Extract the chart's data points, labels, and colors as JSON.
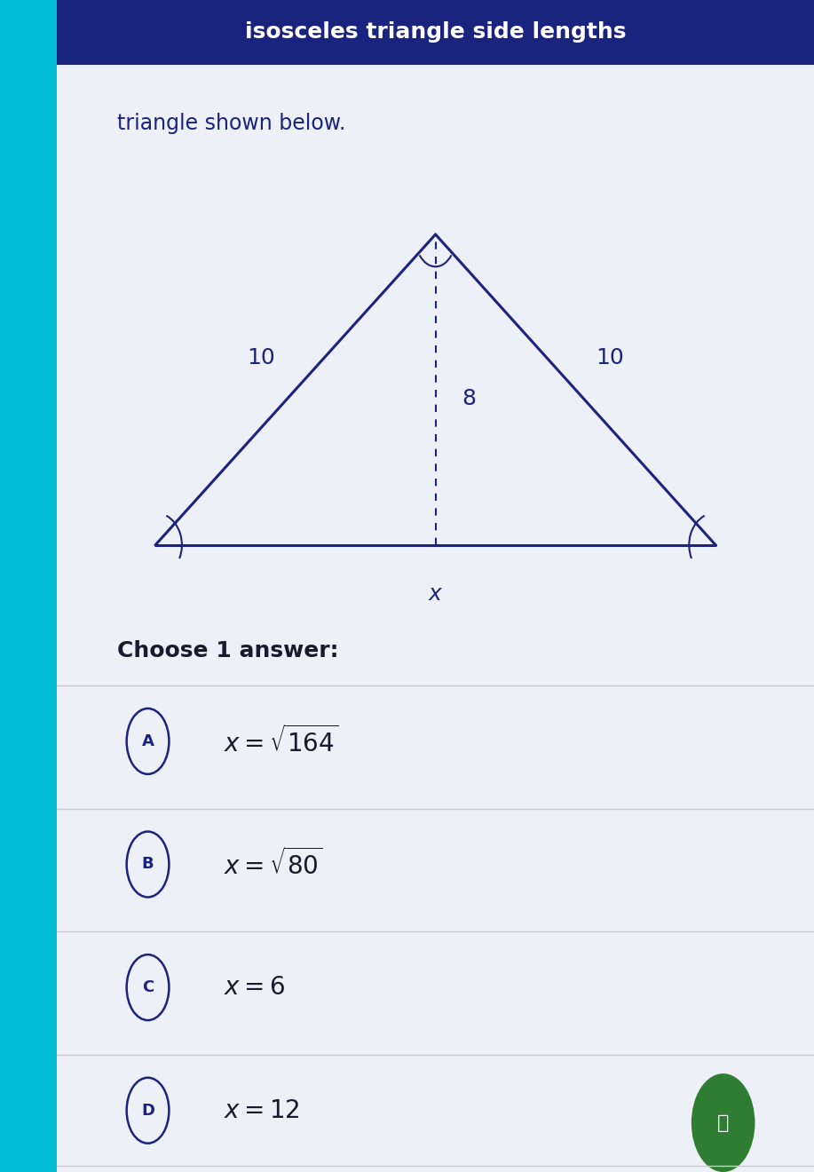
{
  "title": "isosceles triangle side lengths",
  "subtitle": "triangle shown below.",
  "bg_color": "#f0f0f8",
  "title_bg_color": "#1a237e",
  "title_text_color": "#ffffff",
  "subtitle_text_color": "#1a237e",
  "triangle_color": "#1a237e",
  "dashed_color": "#1a237e",
  "label_10_left": "10",
  "label_10_right": "10",
  "label_8": "8",
  "label_x": "x",
  "choices_label": "Choose 1 answer:",
  "choices": [
    {
      "letter": "A",
      "text": "x = \\sqrt{164}"
    },
    {
      "letter": "B",
      "text": "x = \\sqrt{80}"
    },
    {
      "letter": "C",
      "text": "x = 6"
    },
    {
      "letter": "D",
      "text": "x = 12"
    }
  ],
  "divider_color": "#cccccc",
  "circle_color": "#1a237e",
  "bulb_bg": "#2e7d32",
  "bulb_color": "#ffffff",
  "wood_bg": "#8B6914",
  "left_bar_color": "#00bcd4",
  "content_bg": "#eef0f8"
}
